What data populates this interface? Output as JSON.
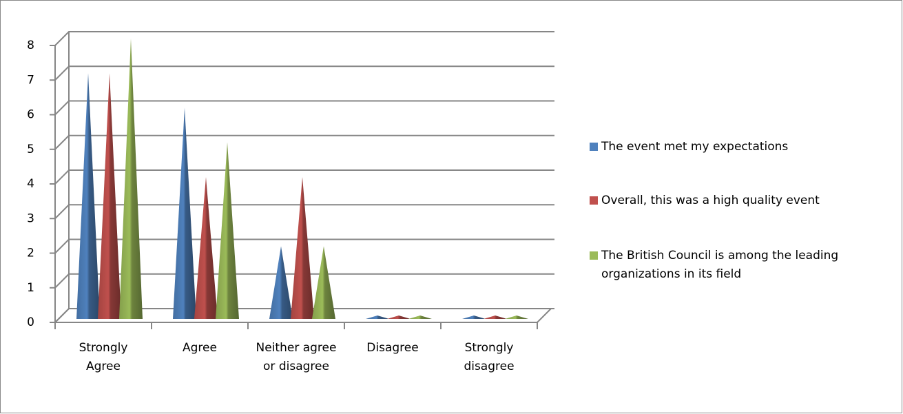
{
  "chart_data": {
    "type": "cone",
    "categories": [
      "Strongly Agree",
      "Agree",
      "Neither agree or disagree",
      "Disagree",
      "Strongly disagree"
    ],
    "series": [
      {
        "name": "The event met my expectations",
        "color": "#4f81bd",
        "values": [
          7,
          6,
          2,
          0,
          0
        ]
      },
      {
        "name": "Overall, this was a high quality event",
        "color": "#c0504d",
        "values": [
          7,
          4,
          4,
          0,
          0
        ]
      },
      {
        "name": "The British Council is among the leading organizations in its field",
        "color": "#9bbb59",
        "values": [
          8,
          5,
          2,
          0,
          0
        ]
      }
    ],
    "ylim": [
      0,
      8
    ],
    "yticks": [
      0,
      1,
      2,
      3,
      4,
      5,
      6,
      7,
      8
    ],
    "grid": true,
    "legend": "right"
  }
}
